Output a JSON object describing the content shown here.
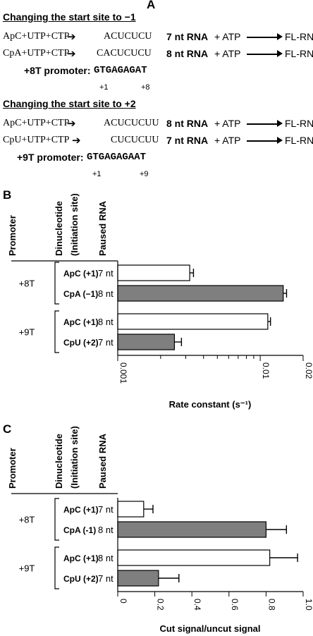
{
  "panel_a": {
    "letter": "A",
    "section1": {
      "header": "Changing the start site to −1",
      "rows": [
        {
          "reactants": "ApC+UTP+CTP",
          "product": "ACUCUCU",
          "rna": "7 nt RNA",
          "atp": "+ ATP",
          "fl": "FL-RNA"
        },
        {
          "reactants": "CpA+UTP+CTP",
          "product": "CACUCUCU",
          "rna": "8 nt RNA",
          "atp": "+ ATP",
          "fl": "FL-RNA"
        }
      ],
      "promoter_label": "+8T promoter:",
      "promoter_seq": "GTGAGAGAT",
      "pos_start": "+1",
      "pos_end": "+8"
    },
    "section2": {
      "header": "Changing the start site to +2",
      "rows": [
        {
          "reactants": "ApC+UTP+CTP",
          "product": "ACUCUCUU",
          "rna": "8 nt RNA",
          "atp": "+ ATP",
          "fl": "FL-RNA"
        },
        {
          "reactants": "CpU+UTP+CTP",
          "product": "CUCUCUU",
          "rna": "7 nt RNA",
          "atp": "+ ATP",
          "fl": "FL-RNA"
        }
      ],
      "promoter_label": "+9T promoter:",
      "promoter_seq": "GTGAGAGAAT",
      "pos_start": "+1",
      "pos_end": "+9"
    }
  },
  "chart_data": [
    {
      "panel": "B",
      "type": "bar",
      "orientation": "horizontal",
      "column_headers": [
        "Promoter",
        "Dinucleotide",
        "(Initiation site)",
        "Paused RNA"
      ],
      "groups": [
        "+8T",
        "+9T"
      ],
      "categories": [
        {
          "group": "+8T",
          "dinucleotide": "ApC (+1)",
          "paused": "7 nt",
          "fill": "white",
          "value": 0.0032,
          "error": 0.0002
        },
        {
          "group": "+8T",
          "dinucleotide": "CpA (−1)",
          "paused": "8 nt",
          "fill": "gray",
          "value": 0.0145,
          "error": 0.0008
        },
        {
          "group": "+9T",
          "dinucleotide": "ApC (+1)",
          "paused": "8 nt",
          "fill": "white",
          "value": 0.0113,
          "error": 0.0005
        },
        {
          "group": "+9T",
          "dinucleotide": "CpU (+2)",
          "paused": "7 nt",
          "fill": "gray",
          "value": 0.0025,
          "error": 0.0003
        }
      ],
      "xscale": "log",
      "xlim": [
        0.001,
        0.02
      ],
      "xticks": [
        0.001,
        0.01,
        0.02
      ],
      "xtick_labels": [
        "0.001",
        "0.01",
        "0.02"
      ],
      "xlabel": "Rate constant (s⁻¹)"
    },
    {
      "panel": "C",
      "type": "bar",
      "orientation": "horizontal",
      "column_headers": [
        "Promoter",
        "Dinucleotide",
        "(Initiation site)",
        "Paused RNA"
      ],
      "groups": [
        "+8T",
        "+9T"
      ],
      "categories": [
        {
          "group": "+8T",
          "dinucleotide": "ApC (+1)",
          "paused": "7 nt",
          "fill": "white",
          "value": 0.14,
          "error": 0.05
        },
        {
          "group": "+8T",
          "dinucleotide": "CpA (-1)",
          "paused": "8 nt",
          "fill": "gray",
          "value": 0.8,
          "error": 0.11
        },
        {
          "group": "+9T",
          "dinucleotide": "ApC (+1)",
          "paused": "8 nt",
          "fill": "white",
          "value": 0.82,
          "error": 0.15
        },
        {
          "group": "+9T",
          "dinucleotide": "CpU (+2)",
          "paused": "7 nt",
          "fill": "gray",
          "value": 0.22,
          "error": 0.11
        }
      ],
      "xscale": "linear",
      "xlim": [
        0,
        1.0
      ],
      "xticks": [
        0,
        0.2,
        0.4,
        0.6,
        0.8,
        1.0
      ],
      "xtick_labels": [
        "0",
        "0.2",
        "0.4",
        "0.6",
        "0.8",
        "1.0"
      ],
      "xlabel": "Cut signal/uncut signal"
    }
  ],
  "colors": {
    "gray_bar": "#7f7f7f",
    "white_bar": "#ffffff",
    "axis": "#000000"
  }
}
